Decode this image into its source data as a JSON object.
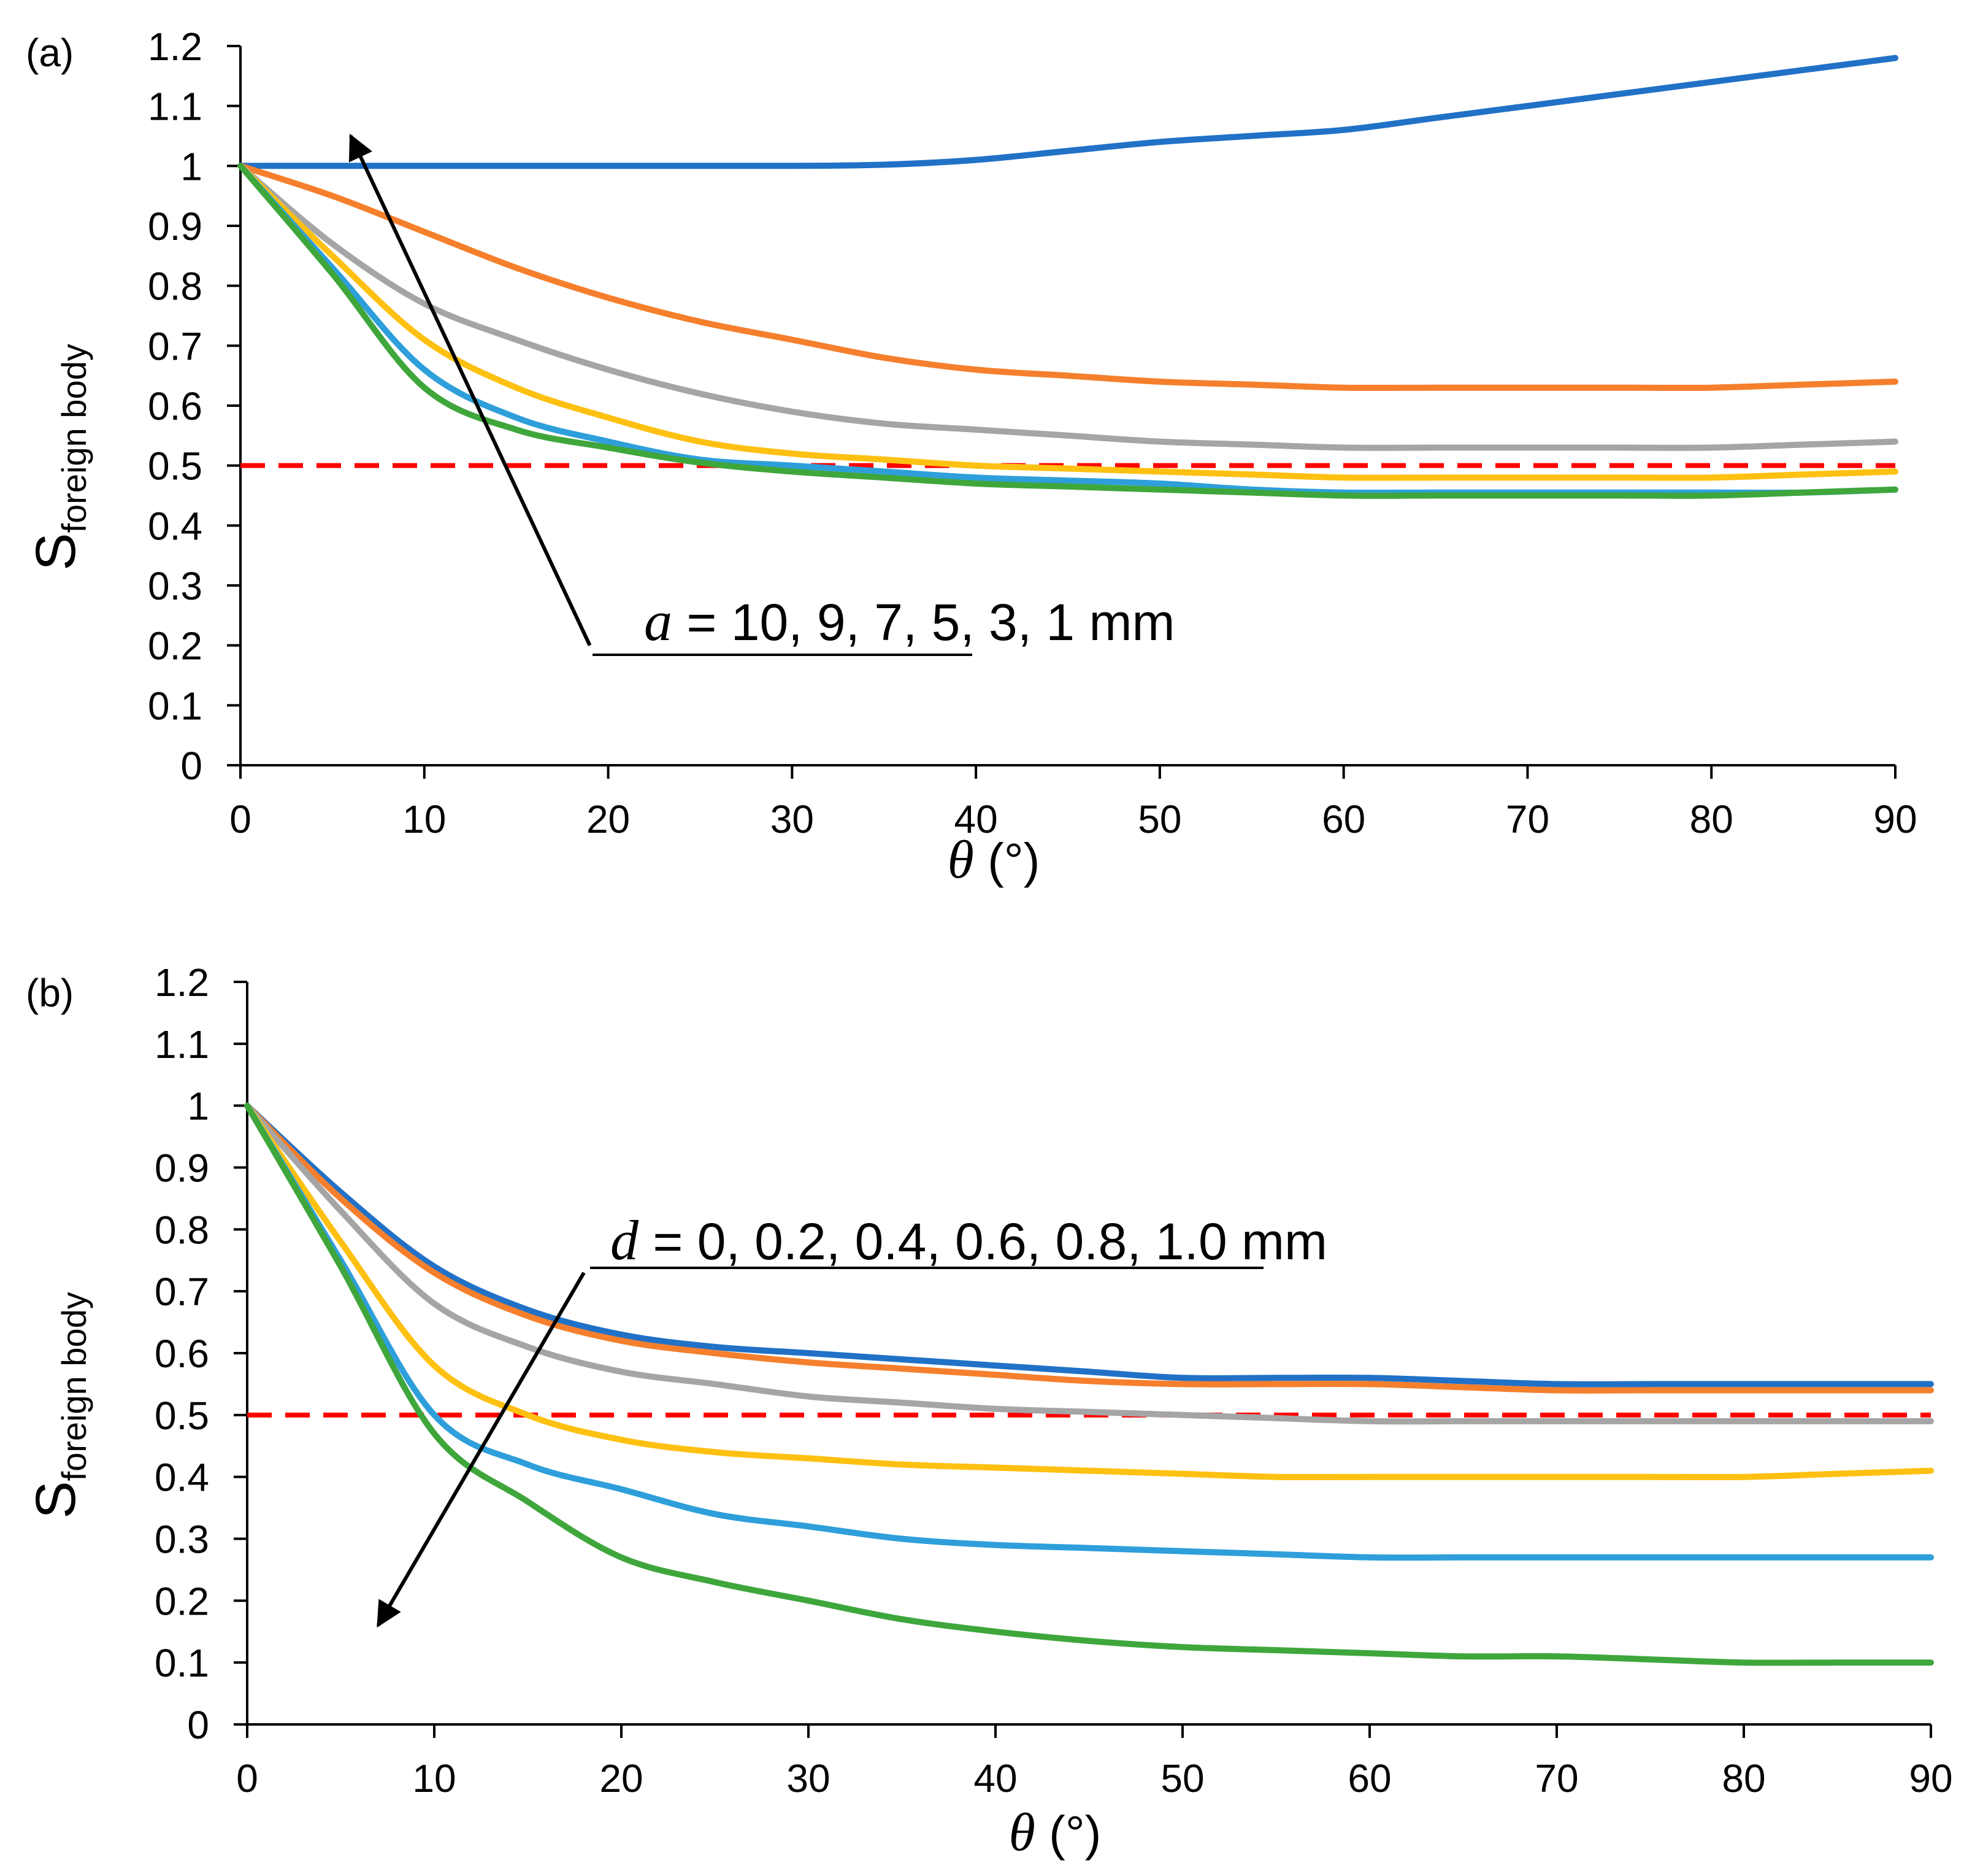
{
  "chart_data": [
    {
      "panel": "(a)",
      "type": "line",
      "xlabel_symbol": "θ",
      "xlabel_unit": " (°)",
      "ylabel_main": "S",
      "ylabel_sub": "foreign body",
      "xlim": [
        0,
        90
      ],
      "ylim": [
        0,
        1.2
      ],
      "xticks": [
        "0",
        "10",
        "20",
        "30",
        "40",
        "50",
        "60",
        "70",
        "80",
        "90"
      ],
      "yticks": [
        "0",
        "0.1",
        "0.2",
        "0.3",
        "0.4",
        "0.5",
        "0.6",
        "0.7",
        "0.8",
        "0.9",
        "1",
        "1.1",
        "1.2"
      ],
      "annotation_symbol": "a",
      "annotation_text": " = 10, 9, 7, 5, 3, 1 mm",
      "arrow": {
        "from": [
          19,
          0.2
        ],
        "to": [
          6,
          1.05
        ]
      },
      "reference_line": {
        "y": 0.5,
        "color": "#ff0000",
        "style": "dashed"
      },
      "x": [
        0,
        5,
        10,
        15,
        20,
        25,
        30,
        35,
        40,
        45,
        50,
        55,
        60,
        65,
        70,
        75,
        80,
        85,
        90
      ],
      "series": [
        {
          "name": "a = 10 mm",
          "color": "#2171c7",
          "values": [
            1.0,
            1.0,
            1.0,
            1.0,
            1.0,
            1.0,
            1.0,
            1.002,
            1.01,
            1.025,
            1.04,
            1.05,
            1.06,
            1.08,
            1.1,
            1.12,
            1.14,
            1.16,
            1.18
          ]
        },
        {
          "name": "a = 9 mm",
          "color": "#f57f2c",
          "values": [
            1.0,
            0.95,
            0.89,
            0.83,
            0.78,
            0.74,
            0.71,
            0.68,
            0.66,
            0.65,
            0.64,
            0.635,
            0.63,
            0.63,
            0.63,
            0.63,
            0.63,
            0.635,
            0.64
          ]
        },
        {
          "name": "a = 7 mm",
          "color": "#a5a5a5",
          "values": [
            1.0,
            0.87,
            0.77,
            0.71,
            0.66,
            0.62,
            0.59,
            0.57,
            0.56,
            0.55,
            0.54,
            0.535,
            0.53,
            0.53,
            0.53,
            0.53,
            0.53,
            0.535,
            0.54
          ]
        },
        {
          "name": "a = 5 mm",
          "color": "#fec011",
          "values": [
            1.0,
            0.85,
            0.71,
            0.63,
            0.58,
            0.54,
            0.52,
            0.51,
            0.5,
            0.495,
            0.49,
            0.485,
            0.48,
            0.48,
            0.48,
            0.48,
            0.48,
            0.485,
            0.49
          ]
        },
        {
          "name": "a = 3 mm",
          "color": "#2e9fda",
          "values": [
            1.0,
            0.83,
            0.66,
            0.58,
            0.54,
            0.51,
            0.5,
            0.49,
            0.48,
            0.475,
            0.47,
            0.46,
            0.455,
            0.455,
            0.455,
            0.455,
            0.455,
            0.455,
            0.46
          ]
        },
        {
          "name": "a = 1 mm",
          "color": "#3fa63c",
          "values": [
            1.0,
            0.82,
            0.63,
            0.56,
            0.53,
            0.505,
            0.49,
            0.48,
            0.47,
            0.465,
            0.46,
            0.455,
            0.45,
            0.45,
            0.45,
            0.45,
            0.45,
            0.455,
            0.46
          ]
        }
      ]
    },
    {
      "panel": "(b)",
      "type": "line",
      "xlabel_symbol": "θ",
      "xlabel_unit": " (°)",
      "ylabel_main": "S",
      "ylabel_sub": "foreign body",
      "xlim": [
        0,
        90
      ],
      "ylim": [
        0,
        1.2
      ],
      "xticks": [
        "0",
        "10",
        "20",
        "30",
        "40",
        "50",
        "60",
        "70",
        "80",
        "90"
      ],
      "yticks": [
        "0",
        "0.1",
        "0.2",
        "0.3",
        "0.4",
        "0.5",
        "0.6",
        "0.7",
        "0.8",
        "0.9",
        "1",
        "1.1",
        "1.2"
      ],
      "annotation_symbol": "d",
      "annotation_text": " = 0, 0.2, 0.4, 0.6, 0.8, 1.0 mm",
      "arrow": {
        "from": [
          18,
          0.73
        ],
        "to": [
          7,
          0.16
        ]
      },
      "reference_line": {
        "y": 0.5,
        "color": "#ff0000",
        "style": "dashed"
      },
      "x": [
        0,
        5,
        10,
        15,
        20,
        25,
        30,
        35,
        40,
        45,
        50,
        55,
        60,
        65,
        70,
        75,
        80,
        85,
        90
      ],
      "series": [
        {
          "name": "d = 0 mm",
          "color": "#2171c7",
          "values": [
            1.0,
            0.86,
            0.74,
            0.67,
            0.63,
            0.61,
            0.6,
            0.59,
            0.58,
            0.57,
            0.56,
            0.56,
            0.56,
            0.555,
            0.55,
            0.55,
            0.55,
            0.55,
            0.55
          ]
        },
        {
          "name": "d = 0.2 mm",
          "color": "#f57f2c",
          "values": [
            1.0,
            0.85,
            0.73,
            0.66,
            0.62,
            0.6,
            0.585,
            0.575,
            0.565,
            0.555,
            0.55,
            0.55,
            0.55,
            0.545,
            0.54,
            0.54,
            0.54,
            0.54,
            0.54
          ]
        },
        {
          "name": "d = 0.4 mm",
          "color": "#a5a5a5",
          "values": [
            1.0,
            0.83,
            0.68,
            0.61,
            0.57,
            0.55,
            0.53,
            0.52,
            0.51,
            0.505,
            0.5,
            0.495,
            0.49,
            0.49,
            0.49,
            0.49,
            0.49,
            0.49,
            0.49
          ]
        },
        {
          "name": "d = 0.6 mm",
          "color": "#fec011",
          "values": [
            1.0,
            0.78,
            0.58,
            0.5,
            0.46,
            0.44,
            0.43,
            0.42,
            0.415,
            0.41,
            0.405,
            0.4,
            0.4,
            0.4,
            0.4,
            0.4,
            0.4,
            0.405,
            0.41
          ]
        },
        {
          "name": "d = 0.8 mm",
          "color": "#2e9fda",
          "values": [
            1.0,
            0.75,
            0.5,
            0.42,
            0.38,
            0.34,
            0.32,
            0.3,
            0.29,
            0.285,
            0.28,
            0.275,
            0.27,
            0.27,
            0.27,
            0.27,
            0.27,
            0.27,
            0.27
          ]
        },
        {
          "name": "d = 1.0 mm",
          "color": "#3fa63c",
          "values": [
            1.0,
            0.74,
            0.47,
            0.36,
            0.27,
            0.23,
            0.2,
            0.17,
            0.15,
            0.135,
            0.125,
            0.12,
            0.115,
            0.11,
            0.11,
            0.105,
            0.1,
            0.1,
            0.1
          ]
        }
      ]
    }
  ]
}
